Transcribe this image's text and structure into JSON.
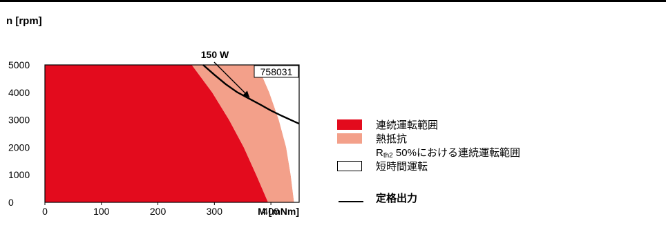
{
  "chart_data": {
    "type": "area",
    "ylabel": "n [rpm]",
    "xlabel": "M [mNm]",
    "xlim": [
      0,
      450
    ],
    "ylim": [
      0,
      5000
    ],
    "x_ticks": [
      "0",
      "100",
      "200",
      "300",
      "400"
    ],
    "y_ticks": [
      "0",
      "1000",
      "2000",
      "3000",
      "4000",
      "5000"
    ],
    "model_label": "758031",
    "annotation": "150 W",
    "regions": [
      {
        "name": "連続運転範囲",
        "color": "#e30b1d",
        "boundary": [
          [
            0,
            5000
          ],
          [
            260,
            5000
          ],
          [
            296,
            4000
          ],
          [
            326,
            3000
          ],
          [
            352,
            2000
          ],
          [
            374,
            1000
          ],
          [
            395,
            0
          ],
          [
            0,
            0
          ]
        ]
      },
      {
        "name": "熱抵抗 R th2 50%における連続運転範囲",
        "color": "#f3a08a",
        "boundary": [
          [
            260,
            5000
          ],
          [
            376,
            5000
          ],
          [
            397,
            4000
          ],
          [
            414,
            3000
          ],
          [
            427,
            2000
          ],
          [
            435,
            1000
          ],
          [
            441,
            0
          ],
          [
            395,
            0
          ],
          [
            374,
            1000
          ],
          [
            352,
            2000
          ],
          [
            326,
            3000
          ],
          [
            296,
            4000
          ]
        ]
      },
      {
        "name": "短時間運転",
        "color": "#ffffff",
        "boundary": [
          [
            376,
            5000
          ],
          [
            450,
            5000
          ],
          [
            450,
            0
          ],
          [
            441,
            0
          ],
          [
            435,
            1000
          ],
          [
            427,
            2000
          ],
          [
            414,
            3000
          ],
          [
            397,
            4000
          ]
        ]
      }
    ],
    "series": [
      {
        "name": "定格出力",
        "type": "line",
        "color": "#000000",
        "points": [
          [
            280,
            5000
          ],
          [
            300,
            4640
          ],
          [
            320,
            4300
          ],
          [
            340,
            4010
          ],
          [
            360,
            3790
          ],
          [
            380,
            3570
          ],
          [
            400,
            3340
          ],
          [
            420,
            3140
          ],
          [
            450,
            2860
          ]
        ]
      }
    ]
  },
  "legend": {
    "item1": "連続運転範囲",
    "item2": "熱抵抗",
    "item3_prefix": "R",
    "item3_sub": "th2",
    "item3_rest": " 50%における連続運転範囲",
    "item4": "短時間運転",
    "item5": "定格出力"
  }
}
